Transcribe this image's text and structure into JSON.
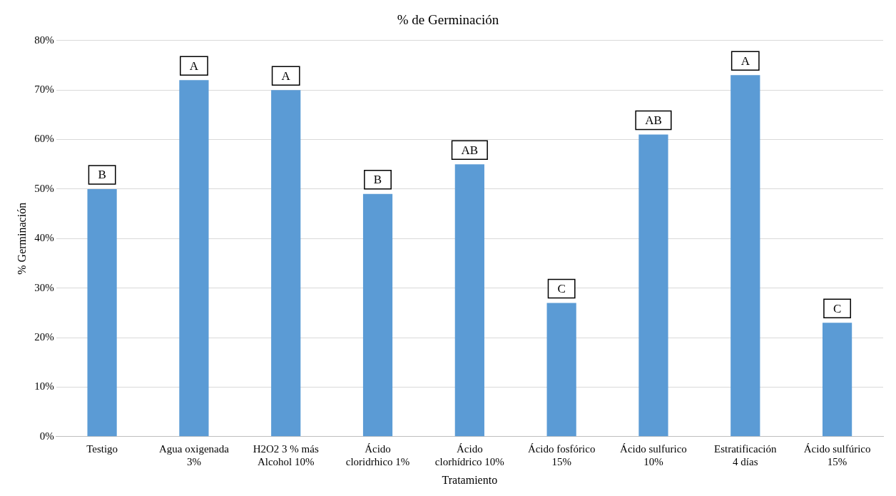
{
  "chart_data": {
    "type": "bar",
    "title": "% de Germinación",
    "xlabel": "Tratamiento",
    "ylabel": "% Germinación",
    "categories": [
      "Testigo",
      "Agua oxigenada 3%",
      "H2O2 3 % más Alcohol 10%",
      "Ácido cloridrhico 1%",
      "Ácido clorhídrico 10%",
      "Ácido fosfórico 15%",
      "Ácido sulfurico 10%",
      "Estratificación 4 días",
      "Ácido sulfúrico 15%"
    ],
    "values": [
      50,
      72,
      70,
      49,
      55,
      27,
      61,
      73,
      23
    ],
    "color": "#5b9bd5",
    "ylim": [
      0,
      80
    ],
    "yticks": [
      {
        "value": 0,
        "label": "0%"
      },
      {
        "value": 10,
        "label": "10%"
      },
      {
        "value": 20,
        "label": "20%"
      },
      {
        "value": 30,
        "label": "30%"
      },
      {
        "value": 40,
        "label": "40%"
      },
      {
        "value": 50,
        "label": "50%"
      },
      {
        "value": 60,
        "label": "60%"
      },
      {
        "value": 70,
        "label": "70%"
      },
      {
        "value": 80,
        "label": "80%"
      }
    ],
    "grid": "y",
    "annotations": [
      {
        "text": "B",
        "x": "Testigo",
        "y": 50
      },
      {
        "text": "A",
        "x": "Agua oxigenada 3%",
        "y": 72
      },
      {
        "text": "A",
        "x": "H2O2 3 % más Alcohol 10%",
        "y": 70
      },
      {
        "text": "B",
        "x": "Ácido cloridrhico 1%",
        "y": 49
      },
      {
        "text": "AB",
        "x": "Ácido clorhídrico 10%",
        "y": 55
      },
      {
        "text": "C",
        "x": "Ácido fosfórico 15%",
        "y": 27
      },
      {
        "text": "AB",
        "x": "Ácido sulfurico 10%",
        "y": 61
      },
      {
        "text": "A",
        "x": "Estratificación 4 días",
        "y": 73
      },
      {
        "text": "C",
        "x": "Ácido sulfúrico 15%",
        "y": 23
      }
    ]
  }
}
